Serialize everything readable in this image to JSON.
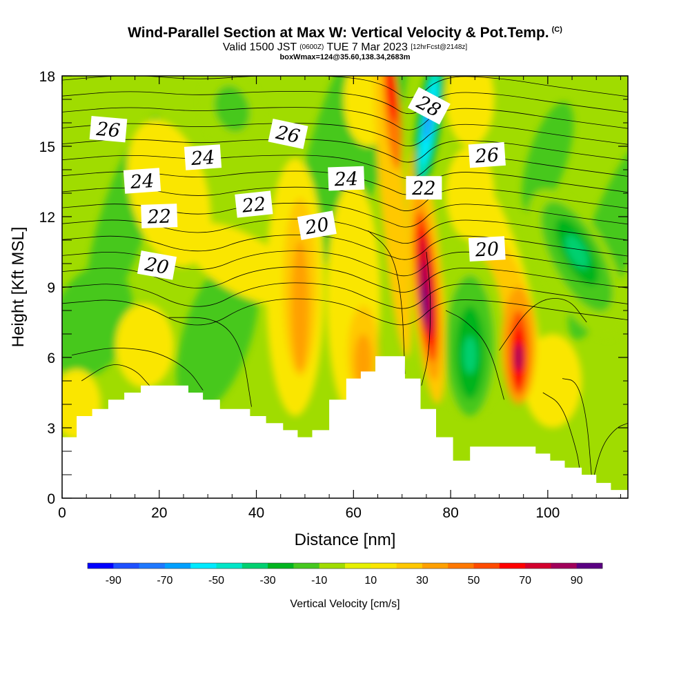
{
  "header": {
    "title": "Wind-Parallel Section at Max W: Vertical Velocity & Pot.Temp.",
    "copyright": "(C)",
    "valid_prefix": "Valid 1500 JST",
    "valid_utc": "(0600Z)",
    "valid_date": "TUE 7 Mar 2023",
    "forecast": "[12hrFcst@2148z]",
    "box_info": "boxWmax=124@35.60,138.34,2683m"
  },
  "chart_data": {
    "type": "heatmap",
    "title": "Wind-Parallel Section at Max W: Vertical Velocity & Pot.Temp.",
    "xlabel": "Distance [nm]",
    "ylabel": "Height [Kft MSL]",
    "xlim": [
      0,
      116.5
    ],
    "ylim": [
      0,
      18
    ],
    "x_ticks": [
      0,
      20,
      40,
      60,
      80,
      100
    ],
    "y_ticks": [
      0,
      3,
      6,
      9,
      12,
      15,
      18
    ],
    "x_tick_labels": [
      "0",
      "20",
      "40",
      "60",
      "80",
      "100"
    ],
    "y_tick_labels": [
      "0",
      "3",
      "6",
      "9",
      "12",
      "15",
      "18"
    ],
    "colorbar": {
      "label": "Vertical Velocity [cm/s]",
      "tick_labels": [
        "-90",
        "-70",
        "-50",
        "-30",
        "-10",
        "10",
        "30",
        "50",
        "70",
        "90"
      ],
      "bins": [
        {
          "lo": -100,
          "hi": -90,
          "color": "#0000ff"
        },
        {
          "lo": -90,
          "hi": -80,
          "color": "#1e50ff"
        },
        {
          "lo": -80,
          "hi": -70,
          "color": "#1e78ff"
        },
        {
          "lo": -70,
          "hi": -60,
          "color": "#00a0ff"
        },
        {
          "lo": -60,
          "hi": -50,
          "color": "#00eaff"
        },
        {
          "lo": -50,
          "hi": -40,
          "color": "#00e6c8"
        },
        {
          "lo": -40,
          "hi": -30,
          "color": "#00d070"
        },
        {
          "lo": -30,
          "hi": -20,
          "color": "#00b41e"
        },
        {
          "lo": -20,
          "hi": -10,
          "color": "#46c81e"
        },
        {
          "lo": -10,
          "hi": 0,
          "color": "#a0dc00"
        },
        {
          "lo": 0,
          "hi": 10,
          "color": "#e6f000"
        },
        {
          "lo": 10,
          "hi": 20,
          "color": "#fae600"
        },
        {
          "lo": 20,
          "hi": 30,
          "color": "#ffc800"
        },
        {
          "lo": 30,
          "hi": 40,
          "color": "#ffa000"
        },
        {
          "lo": 40,
          "hi": 50,
          "color": "#ff7800"
        },
        {
          "lo": 50,
          "hi": 60,
          "color": "#ff4b00"
        },
        {
          "lo": 60,
          "hi": 70,
          "color": "#ff0000"
        },
        {
          "lo": 70,
          "hi": 80,
          "color": "#d2002d"
        },
        {
          "lo": 80,
          "hi": 90,
          "color": "#a0005a"
        },
        {
          "lo": 90,
          "hi": 100,
          "color": "#5a0082"
        }
      ]
    },
    "vertical_velocity_features": [
      {
        "name": "updraft core",
        "x": 74.5,
        "height_kft": 9.0,
        "w_cm_s": 95
      },
      {
        "name": "updraft column",
        "x": 67.5,
        "height_kft": 17.0,
        "w_cm_s": 65
      },
      {
        "name": "downdraft",
        "x": 75.5,
        "height_kft": 16.0,
        "w_cm_s": -85
      },
      {
        "name": "updraft",
        "x": 94,
        "height_kft": 6.0,
        "w_cm_s": 75
      },
      {
        "name": "downdraft",
        "x": 84,
        "height_kft": 6.2,
        "w_cm_s": -40
      },
      {
        "name": "downdraft",
        "x": 106,
        "height_kft": 10.5,
        "w_cm_s": -45
      },
      {
        "name": "updraft",
        "x": 49,
        "height_kft": 8.0,
        "w_cm_s": 30
      },
      {
        "name": "downdraft",
        "x": 35,
        "height_kft": 16.5,
        "w_cm_s": -25
      }
    ],
    "contour_labels": [
      {
        "text": "26",
        "x": 9.5,
        "y": 15.7
      },
      {
        "text": "24",
        "x": 16.5,
        "y": 13.5
      },
      {
        "text": "22",
        "x": 20,
        "y": 12.0
      },
      {
        "text": "20",
        "x": 19.5,
        "y": 9.9
      },
      {
        "text": "24",
        "x": 29,
        "y": 14.5
      },
      {
        "text": "22",
        "x": 39.5,
        "y": 12.5
      },
      {
        "text": "26",
        "x": 46.5,
        "y": 15.5
      },
      {
        "text": "20",
        "x": 52.5,
        "y": 11.6
      },
      {
        "text": "24",
        "x": 58.5,
        "y": 13.6
      },
      {
        "text": "22",
        "x": 74.5,
        "y": 13.2
      },
      {
        "text": "28",
        "x": 75.5,
        "y": 16.7
      },
      {
        "text": "26",
        "x": 87.5,
        "y": 14.6
      },
      {
        "text": "20",
        "x": 87.5,
        "y": 10.6
      }
    ],
    "terrain": {
      "x": [
        0,
        3,
        3,
        6.2,
        6.2,
        9.5,
        9.5,
        12.8,
        12.8,
        16.2,
        16.2,
        26,
        26,
        29,
        29,
        32.5,
        32.5,
        38.7,
        38.7,
        42,
        42,
        45.5,
        45.5,
        48.5,
        48.5,
        51.5,
        51.5,
        55,
        55,
        58.5,
        58.5,
        61.5,
        61.5,
        64.5,
        64.5,
        70.6,
        70.6,
        73.8,
        73.8,
        77,
        77,
        80.5,
        80.5,
        84,
        84,
        97.5,
        97.5,
        100.5,
        100.5,
        103.5,
        103.5,
        107,
        107,
        110,
        110,
        113,
        113,
        116.5,
        116.5
      ],
      "height_kft": [
        2.6,
        2.6,
        3.5,
        3.5,
        3.8,
        3.8,
        4.2,
        4.2,
        4.5,
        4.5,
        4.8,
        4.8,
        4.5,
        4.5,
        4.2,
        4.2,
        3.8,
        3.8,
        3.5,
        3.5,
        3.2,
        3.2,
        2.9,
        2.9,
        2.6,
        2.6,
        2.9,
        2.9,
        4.2,
        4.2,
        5.1,
        5.1,
        5.4,
        5.4,
        6.05,
        6.05,
        5.1,
        5.1,
        3.8,
        3.8,
        2.6,
        2.6,
        1.6,
        1.6,
        2.2,
        2.2,
        1.9,
        1.9,
        1.6,
        1.6,
        1.3,
        1.3,
        1.0,
        1.0,
        0.65,
        0.65,
        0.35,
        0.35,
        0
      ]
    }
  }
}
